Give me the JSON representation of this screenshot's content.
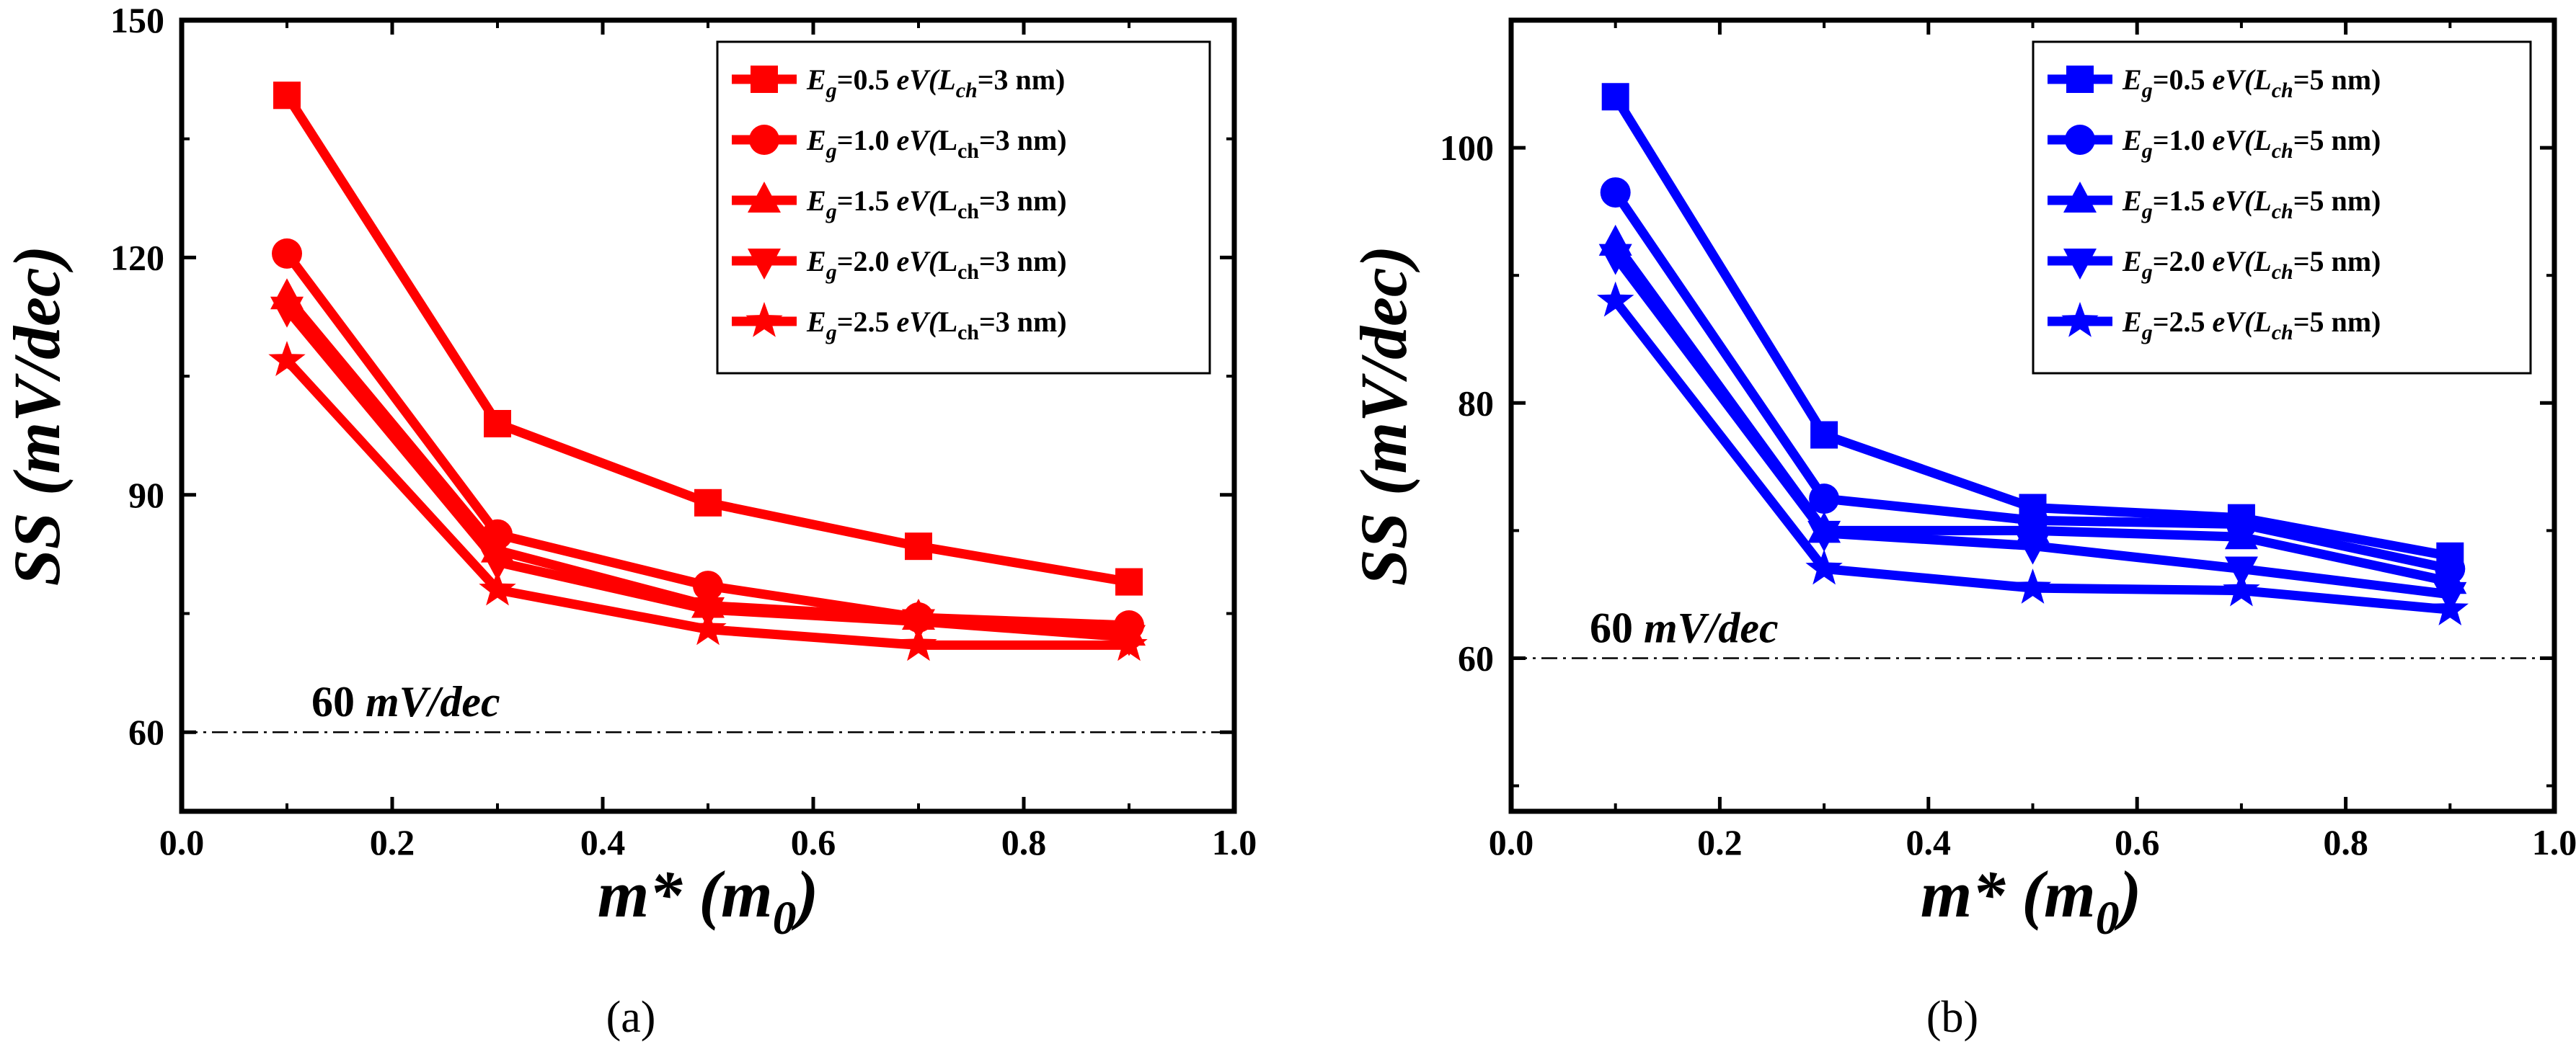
{
  "chart_data": [
    {
      "panel": "a",
      "type": "line",
      "caption": "(a)",
      "color": "#ff0000",
      "title": "",
      "xlabel": "m* (m0)",
      "xlabel_parts": {
        "main": "m* (m",
        "sub": "0",
        "close": ")"
      },
      "ylabel": "SS (mV/dec)",
      "xlim": [
        0.0,
        1.0
      ],
      "ylim": [
        50,
        150
      ],
      "xticks": [
        "0.0",
        "0.2",
        "0.4",
        "0.6",
        "0.8",
        "1.0"
      ],
      "xtick_values": [
        0.0,
        0.2,
        0.4,
        0.6,
        0.8,
        1.0
      ],
      "yticks": [
        "60",
        "90",
        "120",
        "150"
      ],
      "ytick_values": [
        60,
        90,
        120,
        150
      ],
      "reference_line": {
        "value": 60,
        "label": "60 mV/dec"
      },
      "legend_position": "top-right",
      "x": [
        0.1,
        0.3,
        0.5,
        0.7,
        0.9
      ],
      "series": [
        {
          "name": "Eg=0.5 eV(Lch=3 nm)",
          "legend": {
            "eg": "=0.5 ",
            "ev": "eV(",
            "l": "L",
            "lsub": "ch",
            "rest": "=3 nm)",
            "l_italic": true
          },
          "marker": "square",
          "values": [
            140.5,
            99.0,
            89.0,
            83.5,
            79.0
          ]
        },
        {
          "name": "Eg=1.0 eV(Lch=3 nm)",
          "legend": {
            "eg": "=1.0 ",
            "ev": "eV(",
            "l": "L",
            "lsub": "ch",
            "rest": "=3 nm)",
            "l_italic": false
          },
          "marker": "circle",
          "values": [
            120.5,
            85.0,
            78.5,
            74.5,
            73.5
          ]
        },
        {
          "name": "Eg=1.5 eV(Lch=3 nm)",
          "legend": {
            "eg": "=1.5 ",
            "ev": "eV(",
            "l": "L",
            "lsub": "ch",
            "rest": "=3 nm)",
            "l_italic": false
          },
          "marker": "triangle-up",
          "values": [
            115.0,
            83.0,
            76.0,
            74.5,
            72.5
          ]
        },
        {
          "name": "Eg=2.0 eV(Lch=3 nm)",
          "legend": {
            "eg": "=2.0 ",
            "ev": "eV(",
            "l": "L",
            "lsub": "ch",
            "rest": "=3 nm)",
            "l_italic": false
          },
          "marker": "triangle-down",
          "values": [
            113.5,
            81.5,
            75.5,
            74.0,
            72.0
          ]
        },
        {
          "name": "Eg=2.5 eV(Lch=3 nm)",
          "legend": {
            "eg": "=2.5 ",
            "ev": "eV(",
            "l": "L",
            "lsub": "ch",
            "rest": "=3 nm)",
            "l_italic": false
          },
          "marker": "star",
          "values": [
            107.0,
            78.0,
            73.0,
            71.0,
            71.0
          ]
        }
      ]
    },
    {
      "panel": "b",
      "type": "line",
      "caption": "(b)",
      "color": "#0000ff",
      "title": "",
      "xlabel": "m* (m0)",
      "xlabel_parts": {
        "main": "m* (m",
        "sub": "0",
        "close": ")"
      },
      "ylabel": "SS (mV/dec)",
      "xlim": [
        0.0,
        1.0
      ],
      "ylim": [
        48,
        110
      ],
      "xticks": [
        "0.0",
        "0.2",
        "0.4",
        "0.6",
        "0.8",
        "1.0"
      ],
      "xtick_values": [
        0.0,
        0.2,
        0.4,
        0.6,
        0.8,
        1.0
      ],
      "yticks": [
        "60",
        "80",
        "100"
      ],
      "ytick_values": [
        60,
        80,
        100
      ],
      "reference_line": {
        "value": 60,
        "label": "60 mV/dec"
      },
      "legend_position": "top-right",
      "x": [
        0.1,
        0.3,
        0.5,
        0.7,
        0.9
      ],
      "series": [
        {
          "name": "Eg=0.5 eV(Lch=5 nm)",
          "legend": {
            "eg": "=0.5 ",
            "ev": "eV(",
            "l": "L",
            "lsub": "ch",
            "rest": "=5 nm)",
            "l_italic": true
          },
          "marker": "square",
          "values": [
            104.0,
            77.5,
            71.8,
            71.0,
            68.0
          ]
        },
        {
          "name": "Eg=1.0 eV(Lch=5 nm)",
          "legend": {
            "eg": "=1.0 ",
            "ev": "eV(",
            "l": "L",
            "lsub": "ch",
            "rest": "=5 nm)",
            "l_italic": true
          },
          "marker": "circle",
          "values": [
            96.5,
            72.5,
            70.8,
            70.5,
            67.0
          ]
        },
        {
          "name": "Eg=1.5 eV(Lch=5 nm)",
          "legend": {
            "eg": "=1.5 ",
            "ev": "eV(",
            "l": "L",
            "lsub": "ch",
            "rest": "=5 nm)",
            "l_italic": true
          },
          "marker": "triangle-up",
          "values": [
            92.5,
            70.0,
            70.0,
            69.5,
            66.0
          ]
        },
        {
          "name": "Eg=2.0 eV(Lch=5 nm)",
          "legend": {
            "eg": "=2.0 ",
            "ev": "eV(",
            "l": "L",
            "lsub": "ch",
            "rest": "=5 nm)",
            "l_italic": true
          },
          "marker": "triangle-down",
          "values": [
            91.5,
            69.8,
            68.8,
            67.0,
            65.0
          ]
        },
        {
          "name": "Eg=2.5 eV(Lch=5 nm)",
          "legend": {
            "eg": "=2.5 ",
            "ev": " eV(",
            "l": "L",
            "lsub": "ch",
            "rest": "=5 nm)",
            "l_italic": true
          },
          "marker": "star",
          "values": [
            88.0,
            67.0,
            65.5,
            65.3,
            63.8
          ]
        }
      ]
    }
  ]
}
